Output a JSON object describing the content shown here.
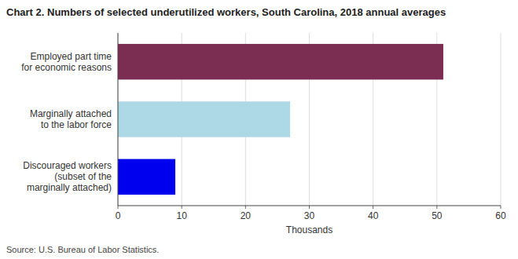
{
  "chart_data": {
    "type": "bar",
    "orientation": "horizontal",
    "title": "Chart 2. Numbers of selected underutilized workers, South Carolina, 2018 annual averages",
    "categories": [
      "Discouraged workers\n(subset of the\nmarginally attached)",
      "Marginally attached\nto the labor force",
      "Employed part time\nfor economic reasons"
    ],
    "values": [
      9,
      27,
      51
    ],
    "colors": [
      "#0000ee",
      "#add8e6",
      "#7b2d52"
    ],
    "xlabel": "Thousands",
    "xlim": [
      0,
      60
    ],
    "xticks": [
      0,
      10,
      20,
      30,
      40,
      50,
      60
    ],
    "grid": true,
    "source": "Source: U.S. Bureau of Labor Statistics."
  }
}
